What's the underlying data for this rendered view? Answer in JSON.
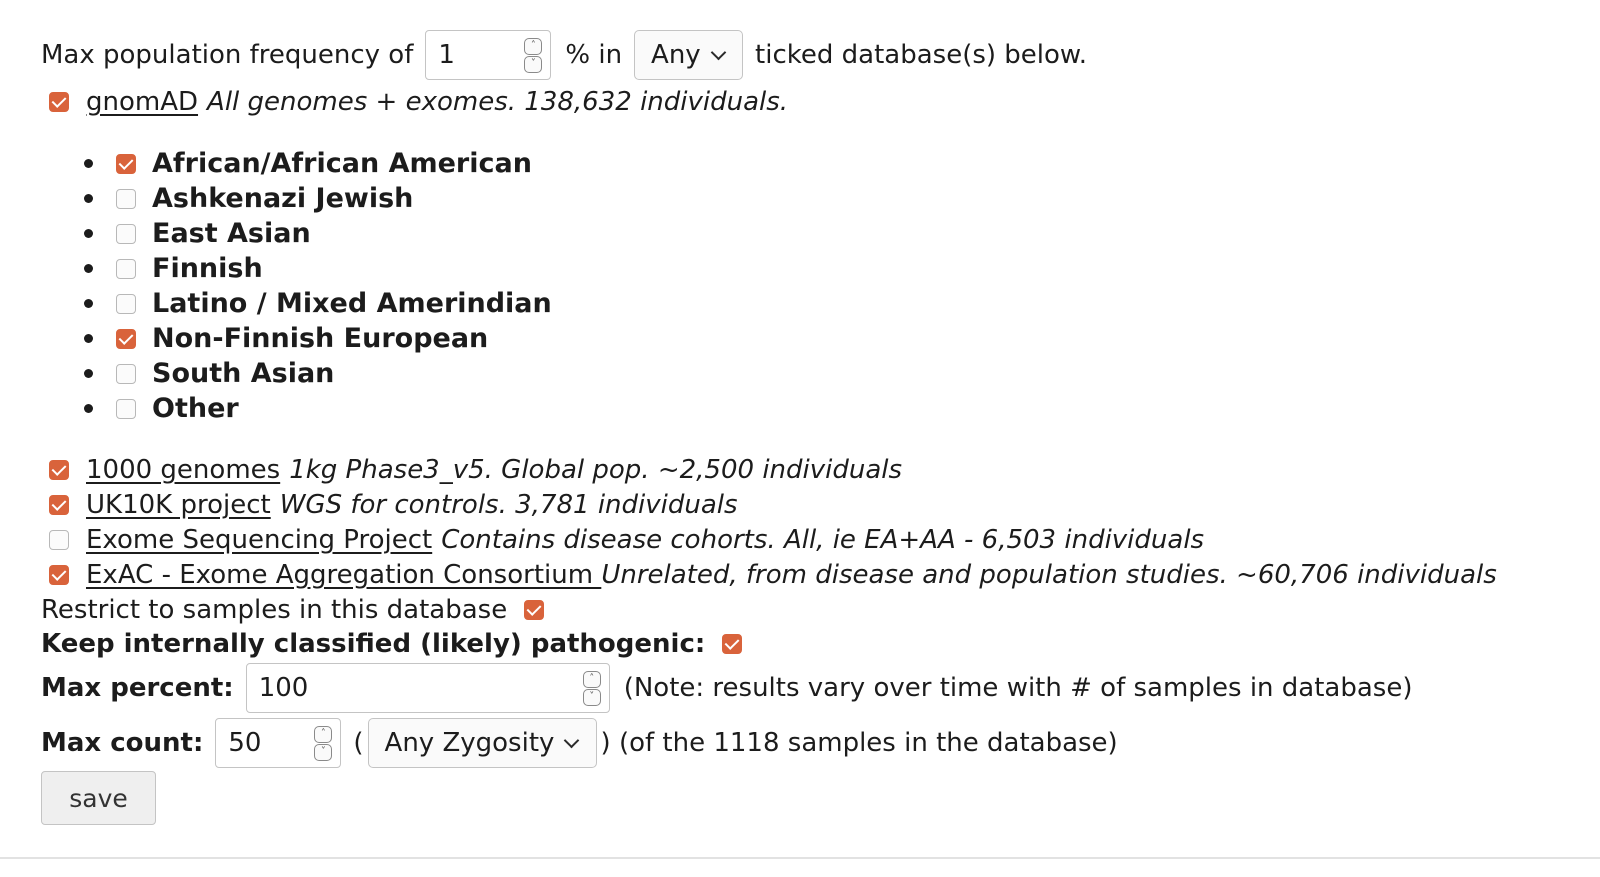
{
  "filter": {
    "prefix": "Max population frequency of",
    "frequency_value": "1",
    "mid": "% in",
    "match_select": "Any",
    "suffix": "ticked database(s) below."
  },
  "gnomad": {
    "checked": true,
    "name": "gnomAD",
    "desc": "All genomes + exomes. 138,632 individuals.",
    "populations": [
      {
        "label": "African/African American",
        "checked": true
      },
      {
        "label": "Ashkenazi Jewish",
        "checked": false
      },
      {
        "label": "East Asian",
        "checked": false
      },
      {
        "label": "Finnish",
        "checked": false
      },
      {
        "label": "Latino / Mixed Amerindian",
        "checked": false
      },
      {
        "label": "Non-Finnish European",
        "checked": true
      },
      {
        "label": "South Asian",
        "checked": false
      },
      {
        "label": "Other",
        "checked": false
      }
    ]
  },
  "databases": [
    {
      "name": "1000 genomes",
      "desc": "1kg Phase3_v5. Global pop. ~2,500 individuals",
      "checked": true
    },
    {
      "name": "UK10K project",
      "desc": "WGS for controls. 3,781 individuals",
      "checked": true
    },
    {
      "name": "Exome Sequencing Project",
      "desc": "Contains disease cohorts. All, ie EA+AA - 6,503 individuals",
      "checked": false
    },
    {
      "name": "ExAC - Exome Aggregation Consortium ",
      "desc": "Unrelated, from disease and population studies. ~60,706 individuals",
      "checked": true
    }
  ],
  "restrict": {
    "label": "Restrict to samples in this database",
    "checked": true
  },
  "keep_pathogenic": {
    "label": "Keep internally classified (likely) pathogenic:",
    "checked": true
  },
  "max_percent": {
    "label": "Max percent:",
    "value": "100",
    "note": "(Note: results vary over time with # of samples in database)"
  },
  "max_count": {
    "label": "Max count:",
    "value": "50",
    "open_paren": "(",
    "zygosity": "Any Zygosity",
    "note": ") (of the 1118 samples in the database)"
  },
  "save_label": "save",
  "colors": {
    "accent": "#d9633b"
  }
}
